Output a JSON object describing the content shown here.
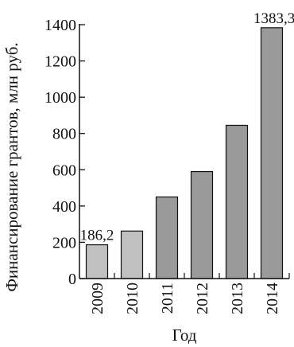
{
  "chart_data": {
    "type": "bar",
    "categories": [
      "2009",
      "2010",
      "2011",
      "2012",
      "2013",
      "2014"
    ],
    "values": [
      186.2,
      262,
      450,
      590,
      845,
      1383.3
    ],
    "data_labels": [
      "186,2",
      "",
      "",
      "",
      "",
      "1383,3"
    ],
    "ylabel": "Финансирование грантов, млн руб.",
    "xlabel": "Год",
    "ylim": [
      0,
      1400
    ],
    "yticks": [
      0,
      200,
      400,
      600,
      800,
      1000,
      1200,
      1400
    ],
    "grid": false,
    "colors": {
      "light_bar": "#c0c0c0",
      "dark_bar": "#9a9a9a",
      "axis": "#111111"
    }
  }
}
